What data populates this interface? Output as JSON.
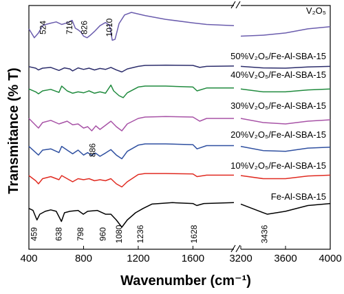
{
  "chart_data": {
    "type": "line",
    "xlabel": "Wavenumber (cm⁻¹)",
    "ylabel": "Transmitance (% T)",
    "x_segments": [
      {
        "range": [
          400,
          1900
        ],
        "ticks": [
          "400",
          "800",
          "1200",
          "1600"
        ]
      },
      {
        "range": [
          3200,
          4000
        ],
        "ticks": [
          "3200",
          "3600",
          "4000"
        ]
      }
    ],
    "axis_break": true,
    "series": [
      {
        "name": "V₂O₅",
        "color": "#6a5cad",
        "points": [
          [
            400,
            0.52
          ],
          [
            440,
            0.8
          ],
          [
            470,
            0.65
          ],
          [
            500,
            0.42
          ],
          [
            524,
            0.38
          ],
          [
            560,
            0.34
          ],
          [
            600,
            0.3
          ],
          [
            640,
            0.38
          ],
          [
            680,
            0.33
          ],
          [
            716,
            0.25
          ],
          [
            740,
            0.5
          ],
          [
            760,
            0.55
          ],
          [
            780,
            0.62
          ],
          [
            800,
            0.75
          ],
          [
            826,
            0.8
          ],
          [
            850,
            0.72
          ],
          [
            880,
            0.6
          ],
          [
            920,
            0.42
          ],
          [
            960,
            0.32
          ],
          [
            990,
            0.4
          ],
          [
            1010,
            0.88
          ],
          [
            1030,
            0.85
          ],
          [
            1060,
            0.35
          ],
          [
            1100,
            0.08
          ],
          [
            1150,
            0.0
          ],
          [
            1250,
            0.1
          ],
          [
            1400,
            0.22
          ],
          [
            1600,
            0.33
          ],
          [
            1700,
            0.38
          ],
          [
            1900,
            0.42
          ]
        ],
        "points2": [
          [
            3200,
            0.75
          ],
          [
            3400,
            0.72
          ],
          [
            3600,
            0.65
          ],
          [
            3800,
            0.52
          ],
          [
            4000,
            0.45
          ]
        ]
      },
      {
        "name": "50%V₂O₅/Fe-Al-SBA-15",
        "color": "#2b2c6b",
        "points": [
          [
            400,
            0.4
          ],
          [
            450,
            0.5
          ],
          [
            470,
            0.62
          ],
          [
            500,
            0.5
          ],
          [
            560,
            0.45
          ],
          [
            620,
            0.65
          ],
          [
            660,
            0.48
          ],
          [
            700,
            0.55
          ],
          [
            720,
            0.68
          ],
          [
            760,
            0.48
          ],
          [
            800,
            0.58
          ],
          [
            840,
            0.5
          ],
          [
            880,
            0.62
          ],
          [
            920,
            0.52
          ],
          [
            960,
            0.58
          ],
          [
            1000,
            0.45
          ],
          [
            1040,
            0.62
          ],
          [
            1080,
            0.75
          ],
          [
            1120,
            0.55
          ],
          [
            1200,
            0.38
          ],
          [
            1250,
            0.32
          ],
          [
            1400,
            0.3
          ],
          [
            1600,
            0.32
          ],
          [
            1650,
            0.45
          ],
          [
            1700,
            0.38
          ],
          [
            1900,
            0.36
          ]
        ],
        "points2": [
          [
            3200,
            0.38
          ],
          [
            3400,
            0.48
          ],
          [
            3600,
            0.5
          ],
          [
            3800,
            0.42
          ],
          [
            4000,
            0.38
          ]
        ]
      },
      {
        "name": "40%V₂O₅/Fe-Al-SBA-15",
        "color": "#1f8a3d",
        "points": [
          [
            400,
            0.4
          ],
          [
            450,
            0.55
          ],
          [
            470,
            0.65
          ],
          [
            500,
            0.5
          ],
          [
            560,
            0.42
          ],
          [
            620,
            0.58
          ],
          [
            640,
            0.25
          ],
          [
            680,
            0.5
          ],
          [
            720,
            0.62
          ],
          [
            760,
            0.55
          ],
          [
            800,
            0.6
          ],
          [
            840,
            0.5
          ],
          [
            880,
            0.62
          ],
          [
            920,
            0.55
          ],
          [
            960,
            0.62
          ],
          [
            1000,
            0.2
          ],
          [
            1020,
            0.5
          ],
          [
            1060,
            0.75
          ],
          [
            1090,
            0.85
          ],
          [
            1120,
            0.6
          ],
          [
            1200,
            0.3
          ],
          [
            1250,
            0.25
          ],
          [
            1400,
            0.25
          ],
          [
            1600,
            0.3
          ],
          [
            1630,
            0.5
          ],
          [
            1700,
            0.35
          ],
          [
            1900,
            0.35
          ]
        ],
        "points2": [
          [
            3200,
            0.4
          ],
          [
            3400,
            0.55
          ],
          [
            3600,
            0.55
          ],
          [
            3800,
            0.45
          ],
          [
            4000,
            0.4
          ]
        ]
      },
      {
        "name": "30%V₂O₅/Fe-Al-SBA-15",
        "color": "#a752a6",
        "points": [
          [
            400,
            0.35
          ],
          [
            450,
            0.6
          ],
          [
            470,
            0.7
          ],
          [
            500,
            0.5
          ],
          [
            560,
            0.42
          ],
          [
            620,
            0.55
          ],
          [
            680,
            0.45
          ],
          [
            720,
            0.58
          ],
          [
            760,
            0.55
          ],
          [
            800,
            0.7
          ],
          [
            830,
            0.65
          ],
          [
            860,
            0.8
          ],
          [
            890,
            0.62
          ],
          [
            920,
            0.75
          ],
          [
            960,
            0.6
          ],
          [
            1000,
            0.45
          ],
          [
            1040,
            0.65
          ],
          [
            1080,
            0.8
          ],
          [
            1120,
            0.55
          ],
          [
            1200,
            0.35
          ],
          [
            1250,
            0.3
          ],
          [
            1400,
            0.28
          ],
          [
            1600,
            0.3
          ],
          [
            1650,
            0.45
          ],
          [
            1700,
            0.35
          ],
          [
            1900,
            0.35
          ]
        ],
        "points2": [
          [
            3200,
            0.35
          ],
          [
            3400,
            0.5
          ],
          [
            3600,
            0.55
          ],
          [
            3800,
            0.45
          ],
          [
            4000,
            0.4
          ]
        ]
      },
      {
        "name": "20%V₂O₅/Fe-Al-SBA-15",
        "color": "#2e4fa0",
        "points": [
          [
            400,
            0.35
          ],
          [
            450,
            0.6
          ],
          [
            470,
            0.7
          ],
          [
            500,
            0.5
          ],
          [
            560,
            0.45
          ],
          [
            620,
            0.6
          ],
          [
            640,
            0.35
          ],
          [
            680,
            0.5
          ],
          [
            720,
            0.65
          ],
          [
            760,
            0.5
          ],
          [
            800,
            0.7
          ],
          [
            830,
            0.6
          ],
          [
            860,
            0.72
          ],
          [
            886,
            0.62
          ],
          [
            920,
            0.75
          ],
          [
            960,
            0.62
          ],
          [
            1000,
            0.48
          ],
          [
            1040,
            0.7
          ],
          [
            1080,
            0.85
          ],
          [
            1120,
            0.55
          ],
          [
            1200,
            0.3
          ],
          [
            1250,
            0.25
          ],
          [
            1400,
            0.25
          ],
          [
            1600,
            0.28
          ],
          [
            1630,
            0.45
          ],
          [
            1700,
            0.32
          ],
          [
            1900,
            0.32
          ]
        ],
        "points2": [
          [
            3200,
            0.35
          ],
          [
            3400,
            0.52
          ],
          [
            3600,
            0.55
          ],
          [
            3800,
            0.42
          ],
          [
            4000,
            0.38
          ]
        ]
      },
      {
        "name": "10%V₂O₅/Fe-Al-SBA-15",
        "color": "#e02a20",
        "points": [
          [
            400,
            0.3
          ],
          [
            450,
            0.55
          ],
          [
            470,
            0.7
          ],
          [
            500,
            0.45
          ],
          [
            560,
            0.35
          ],
          [
            620,
            0.5
          ],
          [
            640,
            0.3
          ],
          [
            680,
            0.45
          ],
          [
            720,
            0.6
          ],
          [
            760,
            0.45
          ],
          [
            800,
            0.5
          ],
          [
            840,
            0.45
          ],
          [
            880,
            0.55
          ],
          [
            920,
            0.5
          ],
          [
            960,
            0.55
          ],
          [
            1000,
            0.45
          ],
          [
            1040,
            0.7
          ],
          [
            1080,
            0.85
          ],
          [
            1120,
            0.6
          ],
          [
            1200,
            0.25
          ],
          [
            1250,
            0.2
          ],
          [
            1400,
            0.2
          ],
          [
            1600,
            0.22
          ],
          [
            1630,
            0.35
          ],
          [
            1700,
            0.28
          ],
          [
            1900,
            0.28
          ]
        ],
        "points2": [
          [
            3200,
            0.3
          ],
          [
            3400,
            0.45
          ],
          [
            3600,
            0.45
          ],
          [
            3800,
            0.32
          ],
          [
            4000,
            0.28
          ]
        ]
      },
      {
        "name": "Fe-Al-SBA-15",
        "color": "#000000",
        "points": [
          [
            400,
            0.35
          ],
          [
            430,
            0.42
          ],
          [
            459,
            0.75
          ],
          [
            480,
            0.55
          ],
          [
            520,
            0.45
          ],
          [
            560,
            0.4
          ],
          [
            600,
            0.45
          ],
          [
            638,
            0.8
          ],
          [
            660,
            0.5
          ],
          [
            700,
            0.45
          ],
          [
            760,
            0.42
          ],
          [
            798,
            0.55
          ],
          [
            830,
            0.45
          ],
          [
            900,
            0.42
          ],
          [
            960,
            0.55
          ],
          [
            1000,
            0.55
          ],
          [
            1040,
            0.75
          ],
          [
            1080,
            1.0
          ],
          [
            1120,
            0.75
          ],
          [
            1180,
            0.5
          ],
          [
            1236,
            0.35
          ],
          [
            1300,
            0.2
          ],
          [
            1450,
            0.15
          ],
          [
            1600,
            0.18
          ],
          [
            1628,
            0.25
          ],
          [
            1680,
            0.18
          ],
          [
            1900,
            0.15
          ]
        ],
        "points2": [
          [
            3200,
            0.2
          ],
          [
            3300,
            0.35
          ],
          [
            3436,
            0.55
          ],
          [
            3600,
            0.45
          ],
          [
            3800,
            0.25
          ],
          [
            4000,
            0.18
          ]
        ]
      }
    ],
    "annotations": [
      {
        "text": "524",
        "x": 524,
        "series": 0
      },
      {
        "text": "716",
        "x": 716,
        "series": 0
      },
      {
        "text": "826",
        "x": 826,
        "series": 0
      },
      {
        "text": "1010",
        "x": 1010,
        "series": 0
      },
      {
        "text": "886",
        "x": 886,
        "series": 4
      },
      {
        "text": "459",
        "x": 459,
        "series": 6
      },
      {
        "text": "638",
        "x": 638,
        "series": 6
      },
      {
        "text": "798",
        "x": 798,
        "series": 6
      },
      {
        "text": "960",
        "x": 960,
        "series": 6
      },
      {
        "text": "1080",
        "x": 1080,
        "series": 6
      },
      {
        "text": "1236",
        "x": 1236,
        "series": 6
      },
      {
        "text": "1628",
        "x": 1628,
        "series": 6
      },
      {
        "text": "3436",
        "x": 3436,
        "series": 6
      }
    ]
  }
}
